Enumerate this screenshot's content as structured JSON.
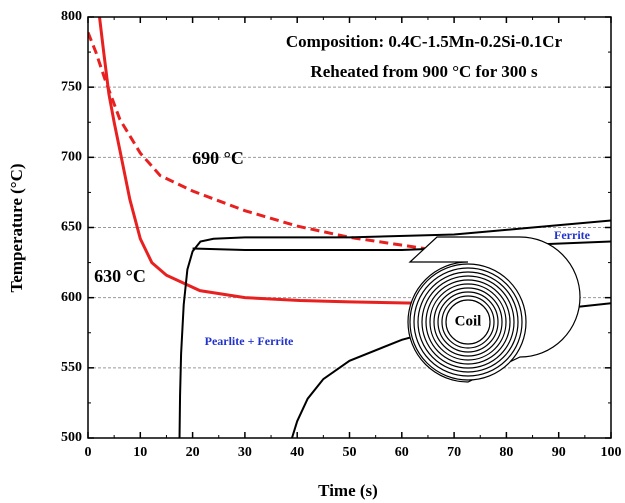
{
  "chart_data": {
    "type": "line",
    "xlabel": "Time (s)",
    "ylabel": "Temperature (°C)",
    "xlim": [
      0,
      100
    ],
    "xticks": [
      0,
      10,
      20,
      30,
      40,
      50,
      60,
      70,
      80,
      90,
      100
    ],
    "ylim": [
      500,
      800
    ],
    "yticks": [
      500,
      550,
      600,
      650,
      700,
      750,
      800
    ],
    "grid": true,
    "series": [
      {
        "color": "#e8201f",
        "dash": false,
        "x": [
          2.2,
          3,
          4,
          5,
          6.1,
          8,
          10,
          12.2,
          15,
          21.4,
          30,
          40.5,
          50,
          63.5,
          65
        ],
        "values": [
          800,
          775,
          745,
          725,
          705,
          670,
          642,
          625,
          616,
          605,
          600,
          598,
          597,
          596,
          596
        ]
      },
      {
        "color": "#e8201f",
        "dash": true,
        "x": [
          0,
          1.5,
          3.3,
          6.1,
          10,
          13.8,
          20,
          30,
          40,
          50,
          64.4
        ],
        "values": [
          789,
          775,
          755,
          727,
          703,
          687,
          676,
          662,
          651,
          643,
          635
        ]
      },
      {
        "color": "#000000",
        "dash": false,
        "x": [
          17.5,
          17.6,
          17.8,
          18.3,
          19,
          20,
          21.5,
          24,
          30,
          50,
          70,
          85,
          100
        ],
        "values": [
          500,
          530,
          560,
          595,
          620,
          633,
          640,
          642,
          643,
          643,
          645,
          650,
          655
        ]
      },
      {
        "color": "#000000",
        "dash": false,
        "x": [
          20,
          30,
          40,
          60,
          80,
          100
        ],
        "values": [
          635,
          634,
          634,
          634,
          637,
          640
        ]
      },
      {
        "color": "#000000",
        "dash": false,
        "x": [
          39,
          40,
          42,
          45,
          50,
          60,
          70,
          80,
          90,
          100
        ],
        "values": [
          500,
          512,
          528,
          542,
          555,
          570,
          580,
          588,
          592,
          596
        ]
      }
    ],
    "annotations": [
      {
        "text": "Composition: 0.4C-1.5Mn-0.2Si-0.1Cr"
      },
      {
        "text": "Reheated from 900 °C for 300 s"
      },
      {
        "text": "690 °C"
      },
      {
        "text": "630 °C"
      },
      {
        "text": "Ferrite"
      },
      {
        "text": "Pearlite + Ferrite"
      },
      {
        "text": "Coil"
      }
    ]
  }
}
